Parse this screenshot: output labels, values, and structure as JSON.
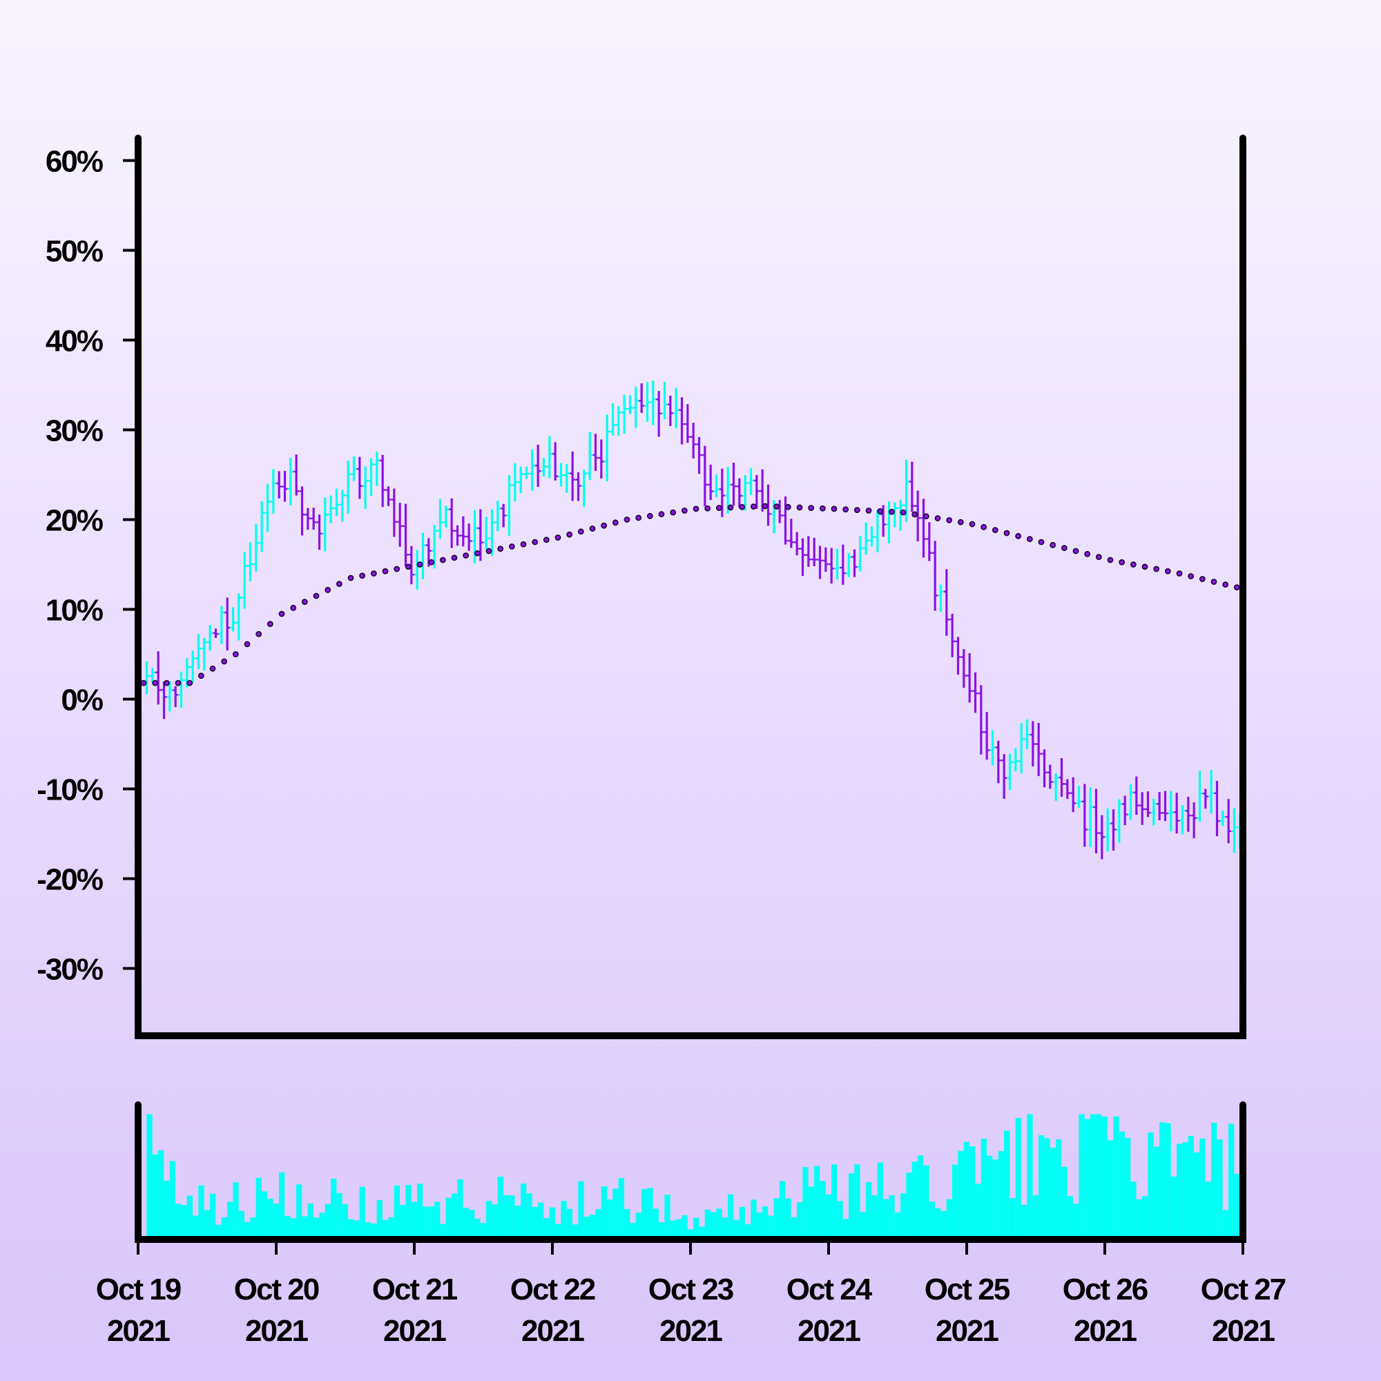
{
  "chart_data": {
    "type": "ohlc",
    "title": "",
    "xlabel": "",
    "ylabel": "",
    "ylim": [
      -37.5,
      62.5
    ],
    "y_ticks": [
      {
        "value": 60,
        "label": "60%"
      },
      {
        "value": 50,
        "label": "50%"
      },
      {
        "value": 40,
        "label": "40%"
      },
      {
        "value": 30,
        "label": "30%"
      },
      {
        "value": 20,
        "label": "20%"
      },
      {
        "value": 10,
        "label": "10%"
      },
      {
        "value": 0,
        "label": "0%"
      },
      {
        "value": -10,
        "label": "-10%"
      },
      {
        "value": -20,
        "label": "-20%"
      },
      {
        "value": -30,
        "label": "-30%"
      }
    ],
    "x_range": [
      "2021-10-19",
      "2021-10-27"
    ],
    "x_ticks": [
      {
        "date": "2021-10-19",
        "line1": "Oct 19",
        "line2": "2021"
      },
      {
        "date": "2021-10-20",
        "line1": "Oct 20",
        "line2": "2021"
      },
      {
        "date": "2021-10-21",
        "line1": "Oct 21",
        "line2": "2021"
      },
      {
        "date": "2021-10-22",
        "line1": "Oct 22",
        "line2": "2021"
      },
      {
        "date": "2021-10-23",
        "line1": "Oct 23",
        "line2": "2021"
      },
      {
        "date": "2021-10-24",
        "line1": "Oct 24",
        "line2": "2021"
      },
      {
        "date": "2021-10-25",
        "line1": "Oct 25",
        "line2": "2021"
      },
      {
        "date": "2021-10-26",
        "line1": "Oct 26",
        "line2": "2021"
      },
      {
        "date": "2021-10-27",
        "line1": "Oct 27",
        "line2": "2021"
      }
    ],
    "grid": false,
    "legend": "none",
    "colors": {
      "up": "#00ffee",
      "down": "#8a12e6",
      "volume": "#00fff5",
      "moving_average_fill": "#8a12e6",
      "moving_average_edge": "#1a0a2a",
      "axes": "#000000"
    },
    "price_path": [
      {
        "date": "2021-10-19 01:00",
        "value": 2
      },
      {
        "date": "2021-10-19 08:00",
        "value": 1
      },
      {
        "date": "2021-10-19 11:00",
        "value": 7
      },
      {
        "date": "2021-10-19 17:00",
        "value": 10
      },
      {
        "date": "2021-10-20 00:00",
        "value": 23
      },
      {
        "date": "2021-10-20 03:00",
        "value": 25
      },
      {
        "date": "2021-10-20 07:00",
        "value": 19
      },
      {
        "date": "2021-10-20 13:00",
        "value": 24
      },
      {
        "date": "2021-10-20 18:00",
        "value": 26
      },
      {
        "date": "2021-10-21 00:00",
        "value": 14
      },
      {
        "date": "2021-10-21 06:00",
        "value": 20
      },
      {
        "date": "2021-10-21 12:00",
        "value": 18
      },
      {
        "date": "2021-10-21 18:00",
        "value": 24
      },
      {
        "date": "2021-10-22 00:00",
        "value": 27
      },
      {
        "date": "2021-10-22 05:00",
        "value": 24
      },
      {
        "date": "2021-10-22 10:00",
        "value": 29
      },
      {
        "date": "2021-10-22 16:00",
        "value": 34
      },
      {
        "date": "2021-10-22 22:00",
        "value": 32
      },
      {
        "date": "2021-10-23 04:00",
        "value": 24
      },
      {
        "date": "2021-10-23 10:00",
        "value": 24
      },
      {
        "date": "2021-10-23 16:00",
        "value": 19
      },
      {
        "date": "2021-10-23 22:00",
        "value": 16
      },
      {
        "date": "2021-10-24 04:00",
        "value": 15
      },
      {
        "date": "2021-10-24 09:00",
        "value": 20
      },
      {
        "date": "2021-10-24 14:00",
        "value": 23
      },
      {
        "date": "2021-10-24 18:00",
        "value": 15
      },
      {
        "date": "2021-10-25 00:00",
        "value": 3
      },
      {
        "date": "2021-10-25 06:00",
        "value": -8
      },
      {
        "date": "2021-10-25 12:00",
        "value": -5
      },
      {
        "date": "2021-10-25 18:00",
        "value": -12
      },
      {
        "date": "2021-10-26 00:00",
        "value": -14
      },
      {
        "date": "2021-10-26 06:00",
        "value": -11
      },
      {
        "date": "2021-10-26 12:00",
        "value": -13
      },
      {
        "date": "2021-10-26 18:00",
        "value": -11
      },
      {
        "date": "2021-10-26 23:00",
        "value": -14
      }
    ],
    "moving_average": [
      {
        "date": "2021-10-19 00:00",
        "value": 1.8
      },
      {
        "date": "2021-10-19 08:00",
        "value": 1.8
      },
      {
        "date": "2021-10-19 16:00",
        "value": 5
      },
      {
        "date": "2021-10-20 00:00",
        "value": 9.5
      },
      {
        "date": "2021-10-20 12:00",
        "value": 13.5
      },
      {
        "date": "2021-10-21 00:00",
        "value": 15
      },
      {
        "date": "2021-10-21 12:00",
        "value": 16.5
      },
      {
        "date": "2021-10-22 00:00",
        "value": 18
      },
      {
        "date": "2021-10-22 12:00",
        "value": 20
      },
      {
        "date": "2021-10-23 00:00",
        "value": 21.2
      },
      {
        "date": "2021-10-23 12:00",
        "value": 21.5
      },
      {
        "date": "2021-10-24 00:00",
        "value": 21.2
      },
      {
        "date": "2021-10-24 12:00",
        "value": 20.8
      },
      {
        "date": "2021-10-25 00:00",
        "value": 19.5
      },
      {
        "date": "2021-10-25 12:00",
        "value": 17.5
      },
      {
        "date": "2021-10-26 00:00",
        "value": 15.5
      },
      {
        "date": "2021-10-26 12:00",
        "value": 14
      },
      {
        "date": "2021-10-26 23:00",
        "value": 12.3
      }
    ],
    "volume_level": [
      {
        "date": "2021-10-19 00:00",
        "value": 0.75
      },
      {
        "date": "2021-10-19 06:00",
        "value": 0.35
      },
      {
        "date": "2021-10-19 12:00",
        "value": 0.3
      },
      {
        "date": "2021-10-20 00:00",
        "value": 0.4
      },
      {
        "date": "2021-10-20 12:00",
        "value": 0.3
      },
      {
        "date": "2021-10-21 00:00",
        "value": 0.3
      },
      {
        "date": "2021-10-21 12:00",
        "value": 0.35
      },
      {
        "date": "2021-10-22 00:00",
        "value": 0.3
      },
      {
        "date": "2021-10-22 12:00",
        "value": 0.35
      },
      {
        "date": "2021-10-23 00:00",
        "value": 0.15
      },
      {
        "date": "2021-10-23 12:00",
        "value": 0.35
      },
      {
        "date": "2021-10-24 00:00",
        "value": 0.4
      },
      {
        "date": "2021-10-24 12:00",
        "value": 0.4
      },
      {
        "date": "2021-10-25 00:00",
        "value": 0.55
      },
      {
        "date": "2021-10-25 12:00",
        "value": 0.7
      },
      {
        "date": "2021-10-26 00:00",
        "value": 0.72
      },
      {
        "date": "2021-10-26 12:00",
        "value": 0.65
      },
      {
        "date": "2021-10-26 23:00",
        "value": 0.6
      }
    ],
    "bar_interval_hours": 1
  }
}
